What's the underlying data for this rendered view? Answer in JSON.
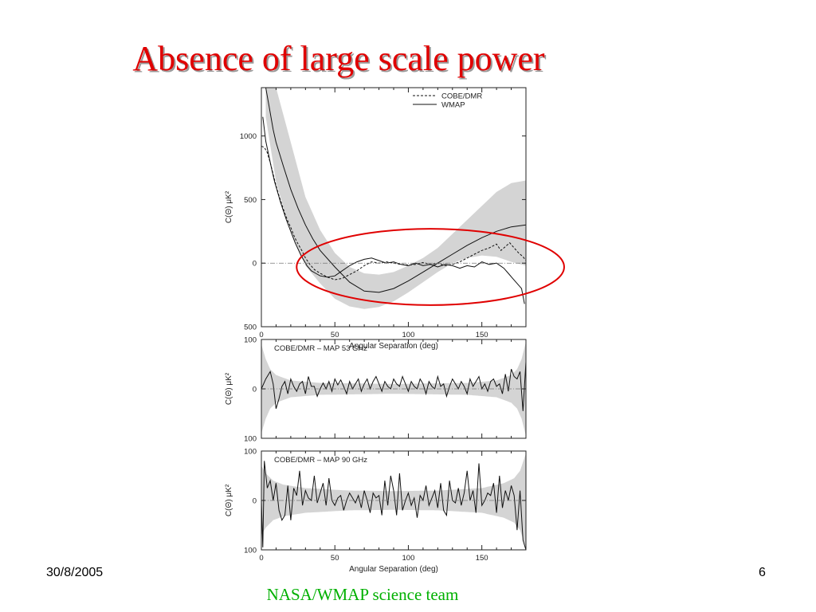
{
  "slide": {
    "title": "Absence of large scale power",
    "date": "30/8/2005",
    "page_number": "6",
    "credit": "NASA/WMAP science team"
  },
  "chart_data": [
    {
      "type": "line",
      "xlabel": "Angular Separation (deg)",
      "ylabel": "C(Θ) μK²",
      "xlim": [
        0,
        180
      ],
      "ylim": [
        -500,
        1380
      ],
      "xticks": [
        0,
        50,
        100,
        150
      ],
      "xtick_labels": [
        "0",
        "50",
        "100",
        "150"
      ],
      "yticks": [
        1000,
        500,
        0,
        -500
      ],
      "ytick_labels": [
        "1000",
        "500",
        "0",
        "500"
      ],
      "legend": {
        "placement": "top-right",
        "entries": [
          {
            "label": "COBE/DMR",
            "style": "dashed"
          },
          {
            "label": "WMAP",
            "style": "solid"
          }
        ]
      },
      "band": {
        "x": [
          3,
          10,
          20,
          30,
          40,
          50,
          60,
          70,
          80,
          90,
          100,
          110,
          120,
          130,
          140,
          150,
          160,
          170,
          180
        ],
        "lower": [
          1150,
          640,
          240,
          -20,
          -160,
          -280,
          -340,
          -360,
          -345,
          -300,
          -230,
          -150,
          -70,
          0,
          40,
          60,
          50,
          10,
          -20
        ],
        "upper": [
          1380,
          1380,
          950,
          520,
          260,
          80,
          -30,
          -80,
          -90,
          -70,
          -20,
          40,
          120,
          230,
          340,
          450,
          560,
          630,
          650
        ]
      },
      "series": [
        {
          "name": "WMAP",
          "style": "solid",
          "x": [
            3,
            5,
            8,
            10,
            15,
            20,
            25,
            30,
            35,
            40,
            50,
            60,
            70,
            80,
            90,
            100,
            110,
            120,
            130,
            140,
            150,
            160,
            170,
            180
          ],
          "y": [
            1380,
            1250,
            1050,
            950,
            760,
            580,
            430,
            300,
            190,
            100,
            -30,
            -150,
            -220,
            -230,
            -200,
            -140,
            -70,
            0,
            70,
            140,
            200,
            250,
            285,
            300
          ]
        },
        {
          "name": "COBE/DMR",
          "style": "dashed",
          "x": [
            0,
            2,
            4,
            6,
            8,
            10,
            12,
            14,
            16,
            18,
            20,
            22,
            24,
            26,
            28,
            30,
            33,
            36,
            40,
            45,
            50,
            55,
            60,
            65,
            70,
            75,
            80,
            85,
            90,
            95,
            100,
            105,
            110,
            115,
            120,
            125,
            130,
            135,
            140,
            145,
            150,
            155,
            160,
            163,
            166,
            169,
            172,
            175,
            178,
            180
          ],
          "y": [
            920,
            910,
            870,
            790,
            700,
            610,
            530,
            460,
            390,
            330,
            280,
            220,
            170,
            130,
            90,
            40,
            -10,
            -50,
            -80,
            -110,
            -130,
            -120,
            -90,
            -60,
            -20,
            10,
            0,
            10,
            0,
            -10,
            -15,
            -10,
            5,
            -10,
            0,
            -20,
            -10,
            10,
            40,
            70,
            100,
            120,
            150,
            100,
            130,
            160,
            120,
            80,
            50,
            20
          ]
        },
        {
          "name": "",
          "style": "solid",
          "x": [
            1,
            3,
            5,
            7,
            9,
            11,
            13,
            15,
            17,
            19,
            21,
            23,
            25,
            27,
            29,
            31,
            34,
            37,
            40,
            45,
            50,
            55,
            60,
            65,
            70,
            75,
            80,
            85,
            90,
            95,
            100,
            105,
            110,
            115,
            120,
            125,
            130,
            135,
            140,
            145,
            150,
            155,
            160,
            165,
            168,
            171,
            174,
            177,
            179
          ],
          "y": [
            1150,
            960,
            850,
            740,
            640,
            560,
            480,
            410,
            340,
            280,
            220,
            160,
            110,
            60,
            20,
            -20,
            -60,
            -80,
            -100,
            -110,
            -100,
            -60,
            -20,
            10,
            30,
            40,
            20,
            0,
            10,
            -10,
            -20,
            0,
            -20,
            -10,
            -30,
            -10,
            -20,
            -40,
            -20,
            -30,
            10,
            -10,
            0,
            -40,
            -80,
            -120,
            -160,
            -200,
            -320
          ]
        }
      ],
      "annotation": {
        "type": "ellipse",
        "color": "#e00000",
        "cx_deg": 115,
        "cy": -30,
        "rx_deg": 91,
        "ry": 300
      }
    },
    {
      "type": "line",
      "annotation_text": "COBE/DMR – MAP    53 GHz",
      "ylabel": "C(Θ) μK²",
      "xlim": [
        0,
        180
      ],
      "ylim": [
        -100,
        100
      ],
      "yticks": [
        100,
        0,
        -100
      ],
      "ytick_labels": [
        "100",
        "0",
        "100"
      ],
      "band_halfwidth": [
        [
          0,
          90
        ],
        [
          3,
          60
        ],
        [
          6,
          40
        ],
        [
          10,
          28
        ],
        [
          20,
          17
        ],
        [
          40,
          12
        ],
        [
          90,
          10
        ],
        [
          140,
          12
        ],
        [
          160,
          17
        ],
        [
          170,
          28
        ],
        [
          174,
          40
        ],
        [
          177,
          60
        ],
        [
          180,
          95
        ]
      ],
      "series": [
        {
          "name": "",
          "x": [
            0,
            3,
            6,
            8,
            10,
            12,
            14,
            16,
            18,
            20,
            22,
            24,
            26,
            28,
            30,
            32,
            34,
            36,
            38,
            40,
            42,
            44,
            46,
            48,
            50,
            52,
            54,
            56,
            58,
            60,
            62,
            64,
            66,
            68,
            70,
            72,
            74,
            76,
            78,
            80,
            82,
            84,
            86,
            88,
            90,
            92,
            94,
            96,
            98,
            100,
            102,
            104,
            106,
            108,
            110,
            112,
            114,
            116,
            118,
            120,
            122,
            124,
            126,
            128,
            130,
            132,
            134,
            136,
            138,
            140,
            142,
            144,
            146,
            148,
            150,
            152,
            154,
            156,
            158,
            160,
            162,
            164,
            166,
            168,
            170,
            172,
            174,
            176,
            178,
            180
          ],
          "y": [
            0,
            20,
            35,
            10,
            -40,
            -20,
            5,
            15,
            -10,
            20,
            5,
            -5,
            10,
            15,
            -10,
            25,
            5,
            5,
            -15,
            0,
            12,
            0,
            15,
            -5,
            20,
            8,
            18,
            5,
            -10,
            15,
            0,
            10,
            20,
            -5,
            10,
            20,
            0,
            15,
            25,
            10,
            -5,
            15,
            5,
            0,
            20,
            10,
            5,
            25,
            10,
            -5,
            15,
            5,
            0,
            20,
            10,
            -10,
            15,
            5,
            0,
            25,
            5,
            10,
            -15,
            5,
            20,
            10,
            0,
            15,
            5,
            -10,
            20,
            5,
            15,
            25,
            0,
            10,
            -5,
            15,
            20,
            5,
            10,
            -10,
            30,
            -5,
            40,
            25,
            20,
            35,
            -45,
            55
          ]
        }
      ]
    },
    {
      "type": "line",
      "annotation_text": "COBE/DMR – MAP    90 GHz",
      "ylabel": "C(Θ) μK²",
      "xlim": [
        0,
        180
      ],
      "ylim": [
        -100,
        100
      ],
      "xticks": [
        0,
        50,
        100,
        150
      ],
      "xtick_labels": [
        "0",
        "50",
        "100",
        "150"
      ],
      "xlabel": "Angular Separation (deg)",
      "yticks": [
        100,
        0,
        -100
      ],
      "ytick_labels": [
        "100",
        "0",
        "100"
      ],
      "band_halfwidth": [
        [
          0,
          70
        ],
        [
          3,
          55
        ],
        [
          8,
          40
        ],
        [
          15,
          32
        ],
        [
          30,
          25
        ],
        [
          60,
          20
        ],
        [
          90,
          19
        ],
        [
          120,
          20
        ],
        [
          150,
          25
        ],
        [
          165,
          35
        ],
        [
          172,
          45
        ],
        [
          176,
          60
        ],
        [
          180,
          95
        ]
      ],
      "series": [
        {
          "name": "",
          "x": [
            0,
            1,
            2,
            4,
            6,
            8,
            10,
            12,
            14,
            16,
            18,
            20,
            22,
            24,
            26,
            28,
            30,
            32,
            34,
            36,
            38,
            40,
            42,
            44,
            46,
            48,
            50,
            52,
            54,
            56,
            58,
            60,
            62,
            64,
            66,
            68,
            70,
            72,
            74,
            76,
            78,
            80,
            82,
            84,
            86,
            88,
            90,
            92,
            94,
            96,
            98,
            100,
            102,
            104,
            106,
            108,
            110,
            112,
            114,
            116,
            118,
            120,
            122,
            124,
            126,
            128,
            130,
            132,
            134,
            136,
            138,
            140,
            142,
            144,
            146,
            148,
            150,
            152,
            154,
            156,
            158,
            160,
            162,
            164,
            166,
            168,
            170,
            172,
            174,
            176,
            178,
            180
          ],
          "y": [
            0,
            -95,
            80,
            25,
            40,
            0,
            35,
            -20,
            -40,
            -30,
            30,
            -40,
            25,
            10,
            60,
            -10,
            20,
            5,
            0,
            50,
            -5,
            15,
            35,
            -10,
            45,
            0,
            -10,
            5,
            10,
            -20,
            0,
            15,
            5,
            -5,
            10,
            -15,
            20,
            0,
            -25,
            15,
            5,
            10,
            -30,
            40,
            -10,
            50,
            20,
            -30,
            55,
            -20,
            0,
            15,
            -10,
            5,
            -35,
            10,
            0,
            30,
            -10,
            5,
            20,
            -15,
            35,
            -20,
            -30,
            40,
            0,
            -5,
            25,
            -10,
            15,
            60,
            0,
            20,
            -25,
            75,
            -10,
            0,
            15,
            10,
            35,
            -25,
            50,
            -15,
            20,
            0,
            30,
            10,
            -60,
            20,
            -80,
            -100
          ]
        }
      ]
    }
  ]
}
